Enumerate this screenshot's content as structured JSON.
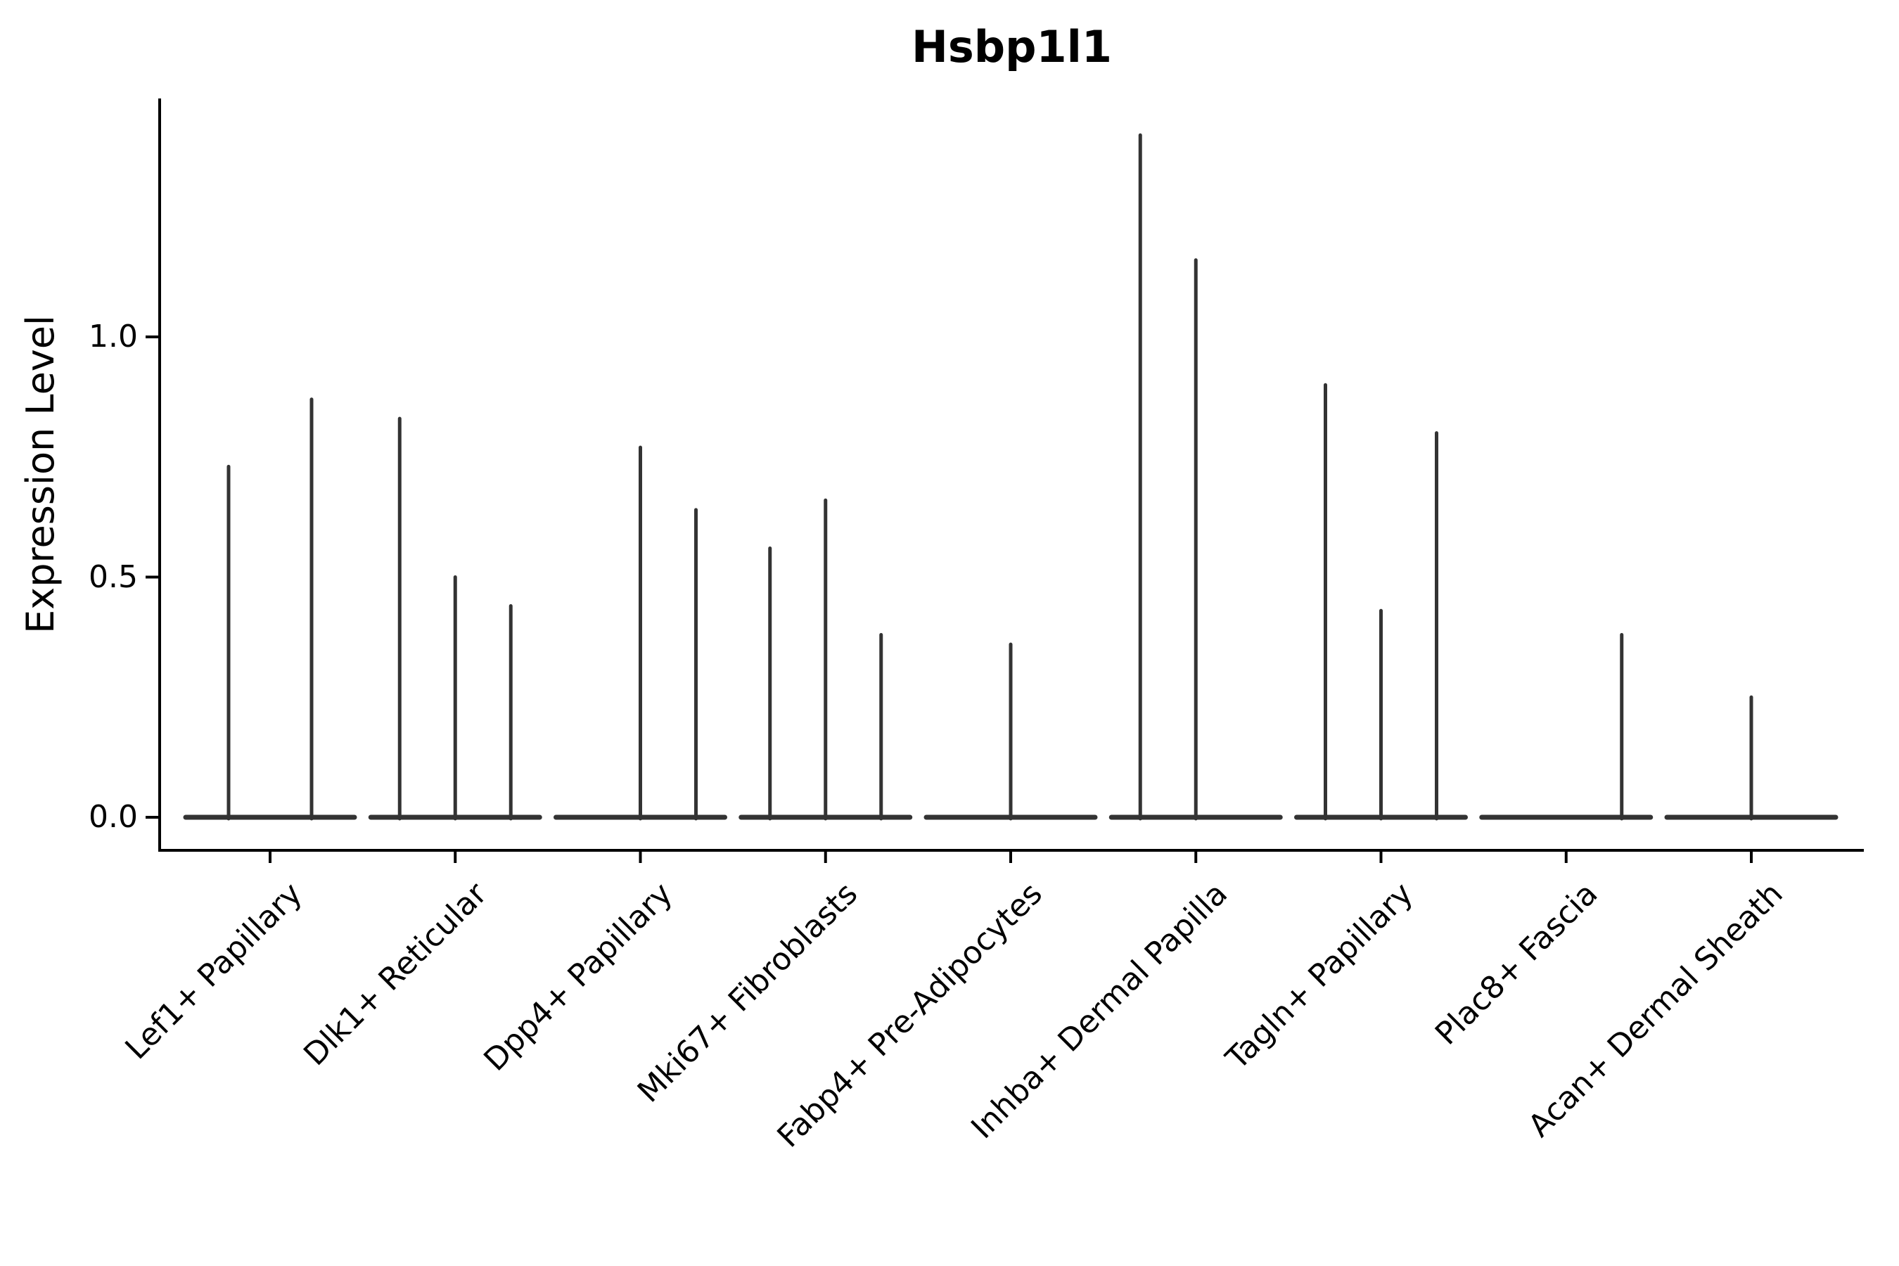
{
  "chart_data": {
    "type": "violin",
    "title": "Hsbp1l1",
    "xlabel": "",
    "ylabel": "Expression Level",
    "ytick_labels": [
      "0.0",
      "0.5",
      "1.0"
    ],
    "ytick_values": [
      0.0,
      0.5,
      1.0
    ],
    "ylim": [
      -0.07,
      1.5
    ],
    "grid": false,
    "violin_color": "#333333",
    "axis_color": "#000000",
    "categories": [
      "Lef1+ Papillary",
      "Dlk1+ Reticular",
      "Dpp4+ Papillary",
      "Mki67+ Fibroblasts",
      "Fabp4+ Pre-Adipocytes",
      "Inhba+ Dermal Papilla",
      "Tagln+ Papillary",
      "Plac8+ Fascia",
      "Acan+ Dermal Sheath"
    ],
    "series": [
      {
        "category": "Lef1+ Papillary",
        "spikes": [
          {
            "dx": -59,
            "peak": 0.73
          },
          {
            "dx": 59,
            "peak": 0.87
          }
        ]
      },
      {
        "category": "Dlk1+ Reticular",
        "spikes": [
          {
            "dx": -79,
            "peak": 0.83
          },
          {
            "dx": 0,
            "peak": 0.5
          },
          {
            "dx": 79,
            "peak": 0.44
          }
        ]
      },
      {
        "category": "Dpp4+ Papillary",
        "spikes": [
          {
            "dx": 0,
            "peak": 0.77
          },
          {
            "dx": 79,
            "peak": 0.64
          }
        ]
      },
      {
        "category": "Mki67+ Fibroblasts",
        "spikes": [
          {
            "dx": -79,
            "peak": 0.56
          },
          {
            "dx": 0,
            "peak": 0.66
          },
          {
            "dx": 79,
            "peak": 0.38
          }
        ]
      },
      {
        "category": "Fabp4+ Pre-Adipocytes",
        "spikes": [
          {
            "dx": 0,
            "peak": 0.36
          }
        ]
      },
      {
        "category": "Inhba+ Dermal Papilla",
        "spikes": [
          {
            "dx": -79,
            "peak": 1.42
          },
          {
            "dx": 0,
            "peak": 1.16
          }
        ]
      },
      {
        "category": "Tagln+ Papillary",
        "spikes": [
          {
            "dx": -79,
            "peak": 0.9
          },
          {
            "dx": 0,
            "peak": 0.43
          },
          {
            "dx": 79,
            "peak": 0.8
          }
        ]
      },
      {
        "category": "Plac8+ Fascia",
        "spikes": [
          {
            "dx": 79,
            "peak": 0.38
          }
        ]
      },
      {
        "category": "Acan+ Dermal Sheath",
        "spikes": [
          {
            "dx": 0,
            "peak": 0.25
          }
        ]
      }
    ]
  }
}
